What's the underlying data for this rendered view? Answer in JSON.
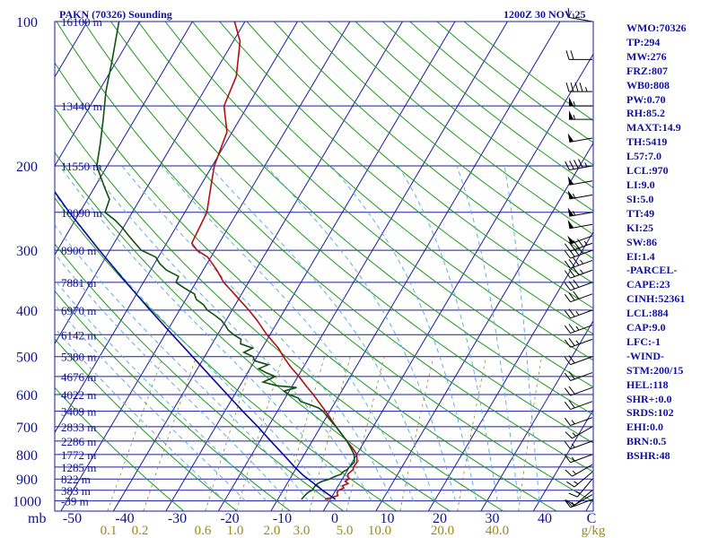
{
  "header": {
    "station": "PAKN (70326) Sounding",
    "time": "1200Z 30 NOV 25"
  },
  "chart_data": {
    "type": "line",
    "skew_t": true,
    "pressure_label": "mb",
    "mixing_ratio_unit": "g/kg",
    "yscale": "log",
    "ylim": [
      1050,
      100
    ],
    "xlim": [
      -50,
      50
    ],
    "pressure_ticks": [
      100,
      200,
      300,
      400,
      500,
      600,
      700,
      800,
      900,
      1000
    ],
    "temperature_ticks": [
      -50,
      -40,
      -30,
      -20,
      -10,
      0,
      10,
      20,
      30,
      40,
      "C"
    ],
    "mixing_ratio_labels": [
      "0.1",
      "0.2",
      "0.6",
      "1.0",
      "2.0",
      "3.0",
      "5.0",
      "10.0",
      "20.0",
      "40.0"
    ],
    "height_labels": [
      {
        "p": 100,
        "label": "16100 m"
      },
      {
        "p": 150,
        "label": "13440 m"
      },
      {
        "p": 200,
        "label": "11550 m"
      },
      {
        "p": 250,
        "label": "10090 m"
      },
      {
        "p": 300,
        "label": "8900 m"
      },
      {
        "p": 350,
        "label": "7881 m"
      },
      {
        "p": 400,
        "label": "6970 m"
      },
      {
        "p": 450,
        "label": "6142 m"
      },
      {
        "p": 500,
        "label": "5380 m"
      },
      {
        "p": 550,
        "label": "4676 m"
      },
      {
        "p": 600,
        "label": "4022 m"
      },
      {
        "p": 650,
        "label": "3409 m"
      },
      {
        "p": 700,
        "label": "2833 m"
      },
      {
        "p": 750,
        "label": "2286 m"
      },
      {
        "p": 800,
        "label": "1772 m"
      },
      {
        "p": 850,
        "label": "1285 m"
      },
      {
        "p": 900,
        "label": "822 m"
      },
      {
        "p": 950,
        "label": "383 m"
      },
      {
        "p": 1000,
        "label": "-39 m"
      }
    ],
    "series": [
      {
        "key": "temperature",
        "color": "#b01010",
        "points": [
          [
            993,
            -1.0
          ],
          [
            975,
            1.0
          ],
          [
            960,
            0.5
          ],
          [
            950,
            0.5
          ],
          [
            940,
            1.3
          ],
          [
            930,
            0.8
          ],
          [
            920,
            1.6
          ],
          [
            910,
            0.8
          ],
          [
            900,
            1.2
          ],
          [
            880,
            0.5
          ],
          [
            860,
            1.0
          ],
          [
            850,
            0.8
          ],
          [
            830,
            0.9
          ],
          [
            800,
            0.0
          ],
          [
            775,
            -1.6
          ],
          [
            750,
            -3.4
          ],
          [
            725,
            -5.2
          ],
          [
            700,
            -7.1
          ],
          [
            675,
            -8.9
          ],
          [
            650,
            -10.8
          ],
          [
            620,
            -13.3
          ],
          [
            600,
            -15.0
          ],
          [
            575,
            -17.4
          ],
          [
            550,
            -19.8
          ],
          [
            525,
            -22.5
          ],
          [
            500,
            -25.0
          ],
          [
            480,
            -26.9
          ],
          [
            450,
            -30.6
          ],
          [
            420,
            -34.1
          ],
          [
            400,
            -36.8
          ],
          [
            370,
            -41.4
          ],
          [
            350,
            -44.7
          ],
          [
            330,
            -47.4
          ],
          [
            310,
            -50.6
          ],
          [
            300,
            -53.4
          ],
          [
            290,
            -55.2
          ],
          [
            250,
            -55.8
          ],
          [
            220,
            -58.0
          ],
          [
            200,
            -59.6
          ],
          [
            170,
            -61.0
          ],
          [
            150,
            -64.5
          ],
          [
            130,
            -65.5
          ],
          [
            110,
            -68.7
          ],
          [
            100,
            -72.0
          ]
        ]
      },
      {
        "key": "dewpoint",
        "color": "#105010",
        "points": [
          [
            993,
            -5.5
          ],
          [
            975,
            -5.3
          ],
          [
            960,
            -5.0
          ],
          [
            950,
            -4.5
          ],
          [
            930,
            -4.4
          ],
          [
            920,
            -4.2
          ],
          [
            910,
            -3.6
          ],
          [
            900,
            -2.4
          ],
          [
            890,
            -1.8
          ],
          [
            880,
            -0.8
          ],
          [
            870,
            -0.7
          ],
          [
            860,
            -0.1
          ],
          [
            850,
            0.0
          ],
          [
            830,
            0.4
          ],
          [
            800,
            -0.5
          ],
          [
            775,
            -1.9
          ],
          [
            750,
            -3.4
          ],
          [
            725,
            -5.2
          ],
          [
            700,
            -7.1
          ],
          [
            675,
            -9.2
          ],
          [
            650,
            -11.3
          ],
          [
            640,
            -12.5
          ],
          [
            630,
            -14.5
          ],
          [
            620,
            -16.7
          ],
          [
            610,
            -17.5
          ],
          [
            600,
            -19.6
          ],
          [
            590,
            -21.0
          ],
          [
            580,
            -19.0
          ],
          [
            575,
            -23.0
          ],
          [
            565,
            -26.0
          ],
          [
            550,
            -24.3
          ],
          [
            540,
            -26.5
          ],
          [
            530,
            -28.3
          ],
          [
            520,
            -27.0
          ],
          [
            510,
            -30.0
          ],
          [
            500,
            -30.8
          ],
          [
            490,
            -33.0
          ],
          [
            480,
            -31.8
          ],
          [
            470,
            -34.6
          ],
          [
            460,
            -35.0
          ],
          [
            450,
            -36.9
          ],
          [
            440,
            -38.5
          ],
          [
            430,
            -39.6
          ],
          [
            420,
            -40.9
          ],
          [
            410,
            -42.7
          ],
          [
            400,
            -44.7
          ],
          [
            390,
            -46.0
          ],
          [
            380,
            -48.0
          ],
          [
            370,
            -49.0
          ],
          [
            360,
            -51.5
          ],
          [
            350,
            -53.8
          ],
          [
            340,
            -54.0
          ],
          [
            330,
            -57.0
          ],
          [
            320,
            -59.0
          ],
          [
            310,
            -60.5
          ],
          [
            300,
            -64.0
          ],
          [
            290,
            -66.0
          ],
          [
            280,
            -68.0
          ],
          [
            270,
            -70.0
          ],
          [
            260,
            -72.3
          ],
          [
            250,
            -75.2
          ],
          [
            235,
            -75.8
          ],
          [
            220,
            -78.4
          ],
          [
            200,
            -82.0
          ],
          [
            180,
            -83.8
          ],
          [
            160,
            -86.0
          ],
          [
            140,
            -88.6
          ],
          [
            120,
            -91.0
          ],
          [
            100,
            -94.0
          ]
        ]
      },
      {
        "key": "parcel",
        "color": "#0a0aa0",
        "points": [
          [
            993,
            1.0
          ],
          [
            950,
            -2.5
          ],
          [
            900,
            -6.5
          ],
          [
            884,
            -7.9
          ],
          [
            850,
            -10.4
          ],
          [
            800,
            -14.0
          ],
          [
            750,
            -17.9
          ],
          [
            700,
            -22.0
          ],
          [
            650,
            -26.6
          ],
          [
            600,
            -31.4
          ],
          [
            550,
            -36.6
          ],
          [
            500,
            -42.3
          ],
          [
            450,
            -48.6
          ],
          [
            400,
            -55.6
          ],
          [
            350,
            -63.3
          ],
          [
            300,
            -72.0
          ],
          [
            250,
            -82.0
          ],
          [
            200,
            -93.5
          ],
          [
            150,
            -107.0
          ],
          [
            120,
            -117.0
          ]
        ]
      }
    ],
    "wind_barbs": [
      {
        "p": 100,
        "dir": 280,
        "kt": 15
      },
      {
        "p": 120,
        "dir": 270,
        "kt": 20
      },
      {
        "p": 140,
        "dir": 270,
        "kt": 45
      },
      {
        "p": 150,
        "dir": 270,
        "kt": 55
      },
      {
        "p": 160,
        "dir": 270,
        "kt": 55
      },
      {
        "p": 175,
        "dir": 260,
        "kt": 50
      },
      {
        "p": 200,
        "dir": 260,
        "kt": 45
      },
      {
        "p": 215,
        "dir": 260,
        "kt": 50
      },
      {
        "p": 230,
        "dir": 260,
        "kt": 55
      },
      {
        "p": 250,
        "dir": 260,
        "kt": 55
      },
      {
        "p": 265,
        "dir": 260,
        "kt": 50
      },
      {
        "p": 280,
        "dir": 250,
        "kt": 50
      },
      {
        "p": 290,
        "dir": 250,
        "kt": 45
      },
      {
        "p": 300,
        "dir": 250,
        "kt": 40
      },
      {
        "p": 315,
        "dir": 250,
        "kt": 35
      },
      {
        "p": 330,
        "dir": 250,
        "kt": 35
      },
      {
        "p": 350,
        "dir": 250,
        "kt": 30
      },
      {
        "p": 370,
        "dir": 250,
        "kt": 30
      },
      {
        "p": 400,
        "dir": 250,
        "kt": 25
      },
      {
        "p": 430,
        "dir": 250,
        "kt": 25
      },
      {
        "p": 460,
        "dir": 250,
        "kt": 25
      },
      {
        "p": 500,
        "dir": 250,
        "kt": 20
      },
      {
        "p": 540,
        "dir": 250,
        "kt": 20
      },
      {
        "p": 580,
        "dir": 250,
        "kt": 20
      },
      {
        "p": 620,
        "dir": 250,
        "kt": 20
      },
      {
        "p": 670,
        "dir": 250,
        "kt": 15
      },
      {
        "p": 700,
        "dir": 240,
        "kt": 15
      },
      {
        "p": 750,
        "dir": 250,
        "kt": 15
      },
      {
        "p": 800,
        "dir": 250,
        "kt": 15
      },
      {
        "p": 840,
        "dir": 240,
        "kt": 15
      },
      {
        "p": 870,
        "dir": 230,
        "kt": 15
      },
      {
        "p": 900,
        "dir": 220,
        "kt": 15
      },
      {
        "p": 950,
        "dir": 230,
        "kt": 10
      },
      {
        "p": 970,
        "dir": 240,
        "kt": 10
      },
      {
        "p": 993,
        "dir": 250,
        "kt": 15
      }
    ],
    "grid": true,
    "colors": {
      "isobar": "#1a1aa0",
      "isotherm": "#1a1aa0",
      "dry_adiabat": "#1b9a1b",
      "moist_adiabat": "#5bb0e0",
      "mixing_ratio": "#8a8a2a"
    }
  },
  "indices": [
    "WMO:70326",
    "TP:294",
    "MW:276",
    "FRZ:807",
    "WB0:808",
    "PW:0.70",
    "RH:85.2",
    "MAXT:14.9",
    "TH:5419",
    "L57:7.0",
    "LCL:970",
    "LI:9.0",
    "SI:5.0",
    "TT:49",
    "KI:25",
    "SW:86",
    "EI:1.4",
    "-PARCEL-",
    "CAPE:23",
    "CINH:52361",
    "LCL:884",
    "CAP:9.0",
    "LFC:-1",
    "-WIND-",
    "STM:200/15",
    "HEL:118",
    "SHR+:0.0",
    "SRDS:102",
    "EHI:0.0",
    "BRN:0.5",
    "BSHR:48"
  ]
}
